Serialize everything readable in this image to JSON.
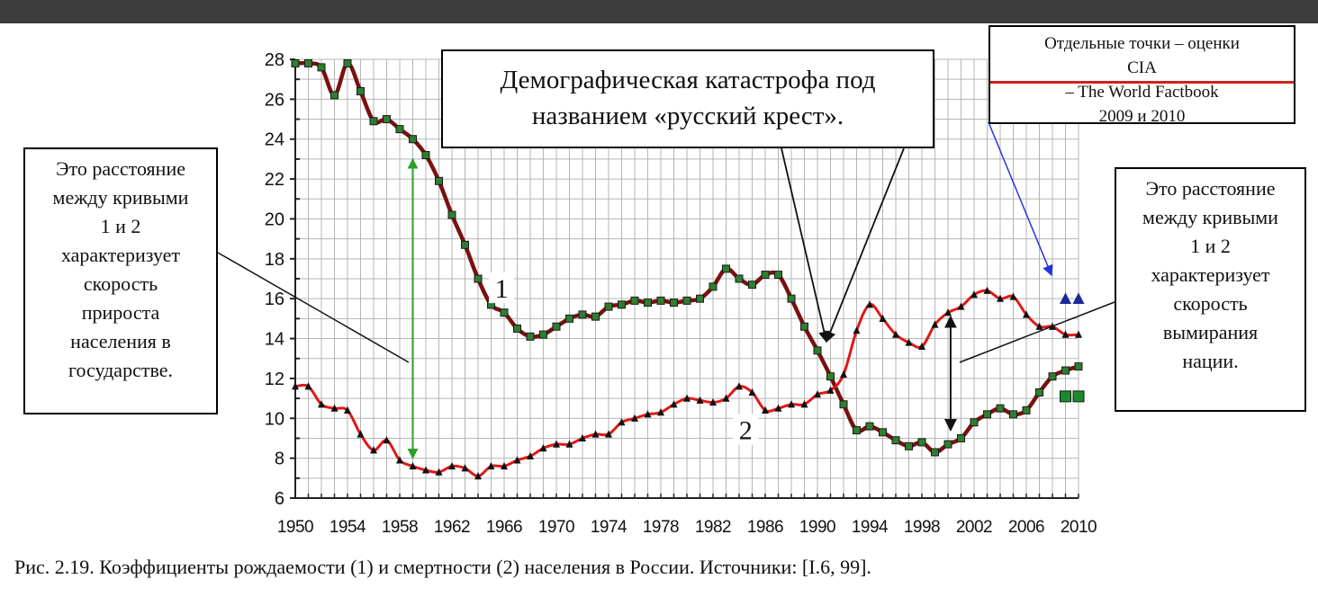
{
  "chart_data": {
    "type": "line",
    "x": [
      1950,
      1951,
      1952,
      1953,
      1954,
      1955,
      1956,
      1957,
      1958,
      1959,
      1960,
      1961,
      1962,
      1963,
      1964,
      1965,
      1966,
      1967,
      1968,
      1969,
      1970,
      1971,
      1972,
      1973,
      1974,
      1975,
      1976,
      1977,
      1978,
      1979,
      1980,
      1981,
      1982,
      1983,
      1984,
      1985,
      1986,
      1987,
      1988,
      1989,
      1990,
      1991,
      1992,
      1993,
      1994,
      1995,
      1996,
      1997,
      1998,
      1999,
      2000,
      2001,
      2002,
      2003,
      2004,
      2005,
      2006,
      2007,
      2008,
      2009,
      2010
    ],
    "series": [
      {
        "name": "1",
        "line_color": "#7a1010",
        "marker": "square",
        "marker_color": "#2f7d2f",
        "values": [
          27.8,
          27.8,
          27.6,
          26.2,
          27.8,
          26.4,
          24.9,
          25.0,
          24.5,
          24.0,
          23.2,
          21.9,
          20.2,
          18.7,
          17.0,
          15.7,
          15.3,
          14.5,
          14.1,
          14.2,
          14.6,
          15.0,
          15.2,
          15.1,
          15.6,
          15.7,
          15.9,
          15.8,
          15.9,
          15.8,
          15.9,
          16.0,
          16.6,
          17.5,
          17.0,
          16.7,
          17.2,
          17.2,
          16.0,
          14.6,
          13.4,
          12.1,
          10.7,
          9.4,
          9.6,
          9.3,
          8.9,
          8.6,
          8.8,
          8.3,
          8.7,
          9.0,
          9.8,
          10.2,
          10.5,
          10.2,
          10.4,
          11.3,
          12.1,
          12.4,
          12.6
        ]
      },
      {
        "name": "2",
        "line_color": "#e01818",
        "marker": "triangle",
        "marker_color": "#111111",
        "values": [
          11.6,
          11.6,
          10.7,
          10.5,
          10.4,
          9.2,
          8.4,
          8.9,
          7.9,
          7.6,
          7.4,
          7.3,
          7.6,
          7.5,
          7.1,
          7.6,
          7.6,
          7.9,
          8.1,
          8.5,
          8.7,
          8.7,
          9.0,
          9.2,
          9.2,
          9.8,
          10.0,
          10.2,
          10.3,
          10.7,
          11.0,
          10.9,
          10.8,
          11.0,
          11.6,
          11.3,
          10.4,
          10.5,
          10.7,
          10.7,
          11.2,
          11.4,
          12.2,
          14.4,
          15.7,
          15.0,
          14.2,
          13.8,
          13.6,
          14.7,
          15.3,
          15.6,
          16.2,
          16.4,
          16.0,
          16.1,
          15.2,
          14.6,
          14.6,
          14.2,
          14.2
        ]
      }
    ],
    "cia_points": [
      {
        "x": 2009,
        "y": 16.0,
        "marker": "triangle",
        "color": "#1a2a9a"
      },
      {
        "x": 2010,
        "y": 16.0,
        "marker": "triangle",
        "color": "#1a2a9a"
      },
      {
        "x": 2009,
        "y": 11.1,
        "marker": "square",
        "color": "#1a8a2a"
      },
      {
        "x": 2010,
        "y": 11.1,
        "marker": "square",
        "color": "#1a8a2a"
      }
    ],
    "xlim": [
      1950,
      2010
    ],
    "ylim": [
      6,
      28
    ],
    "x_ticks": [
      "1950",
      "1954",
      "1958",
      "1962",
      "1966",
      "1970",
      "1974",
      "1978",
      "1982",
      "1986",
      "1990",
      "1994",
      "1998",
      "2002",
      "2006",
      "2010"
    ],
    "y_ticks": [
      "6",
      "8",
      "10",
      "12",
      "14",
      "16",
      "18",
      "20",
      "22",
      "24",
      "26",
      "28"
    ],
    "grid": true,
    "curve_labels": [
      {
        "text": "1",
        "x": 1965.8,
        "y": 16.5
      },
      {
        "text": "2",
        "x": 1984.5,
        "y": 9.4
      }
    ]
  },
  "annotations": {
    "left_box_lines": [
      "Это расстояние",
      "между кривыми",
      "1 и 2",
      "характеризует",
      "скорость",
      "прироста",
      "населения в",
      "государстве."
    ],
    "right_box_lines": [
      "Это расстояние",
      "между кривыми",
      "1 и 2",
      "характеризует",
      "скорость",
      "вымирания",
      "нации."
    ],
    "center_box_lines": [
      "Демографическая катастрофа под",
      "названием «русский крест»."
    ],
    "cia_box": {
      "line1": "Отдельные точки – оценки",
      "cia": "CIA",
      "line2_rest": " – The World Factbook",
      "line3": "2009 и 2010"
    }
  },
  "colors": {
    "top_bar": "#3b3b3b",
    "curve1_line": "#7a1010",
    "curve2_line": "#e01818",
    "green_arrow": "#2aa02a",
    "blue_arrow": "#2233dd",
    "grid": "#b5b5b5"
  },
  "caption": "Рис. 2.19. Коэффициенты рождаемости (1) и смертности (2) населения в России. Источники: [I.6, 99]."
}
